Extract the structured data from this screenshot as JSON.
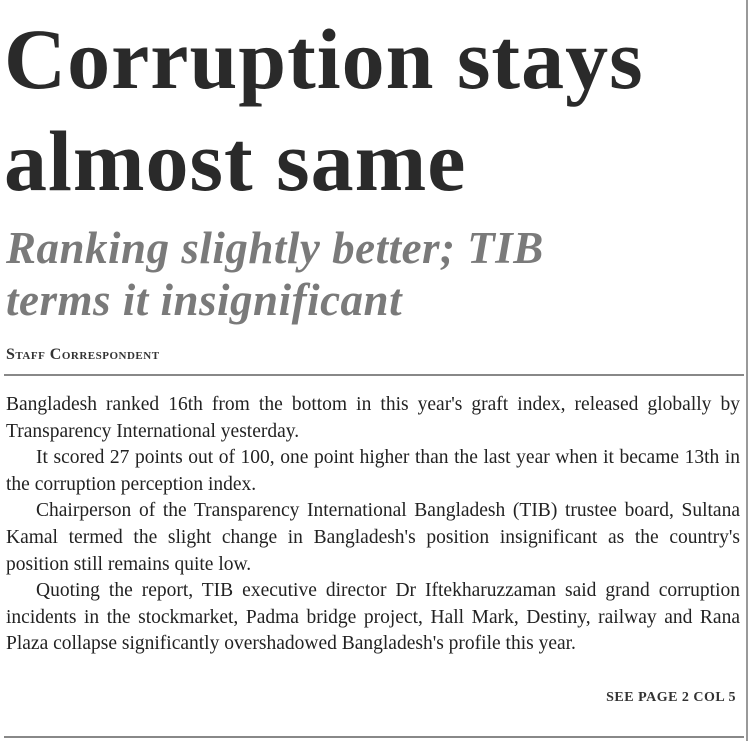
{
  "article": {
    "headline": "Corruption stays almost same",
    "subheadline": "Ranking slightly better; TIB terms it insignificant",
    "byline": "Staff Correspondent",
    "paragraphs": [
      "Bangladesh ranked 16th from the bottom in this year's graft index, released globally by Transparency International yesterday.",
      "It scored 27 points out of 100, one point higher than the last year when it became 13th in the corruption perception index.",
      "Chairperson of the Transparency International Bangladesh (TIB) trustee board, Sultana Kamal termed the slight change in Bangladesh's position insignificant as the country's position still remains quite low.",
      "Quoting the report, TIB executive director Dr Iftekharuzzaman said grand corruption incidents in the stockmarket, Padma bridge project, Hall Mark, Destiny, railway and Rana Plaza collapse significantly overshadowed Bangladesh's profile this year."
    ],
    "continuation": "SEE PAGE 2 COL 5"
  }
}
